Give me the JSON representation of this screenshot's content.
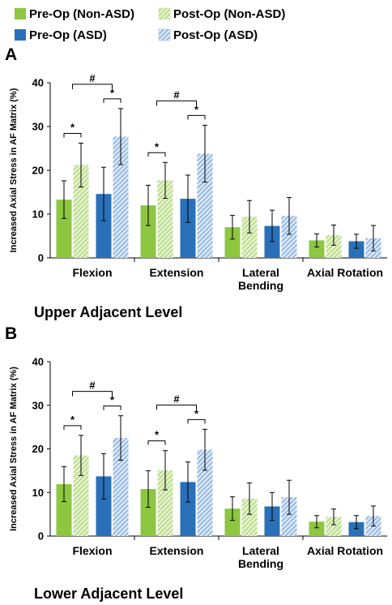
{
  "colors": {
    "pre_non_asd": "#8dc63f",
    "post_non_asd": "#c5e39a",
    "pre_asd": "#2a70b8",
    "post_asd": "#9cc0ea"
  },
  "legend": [
    {
      "label": "Pre-Op (Non-ASD)",
      "hatched": false,
      "color_key": "pre_non_asd"
    },
    {
      "label": "Post-Op (Non-ASD)",
      "hatched": true,
      "color_key": "post_non_asd"
    },
    {
      "label": "Pre-Op (ASD)",
      "hatched": false,
      "color_key": "pre_asd"
    },
    {
      "label": "Post-Op (ASD)",
      "hatched": true,
      "color_key": "post_asd"
    }
  ],
  "chart_data": [
    {
      "type": "bar",
      "panel": "A",
      "subtitle": "Upper Adjacent Level",
      "ylabel": "Increased Axial Stress in AF Matrix (%)",
      "ylim": [
        0,
        40
      ],
      "yticks": [
        0,
        10,
        20,
        30,
        40
      ],
      "categories": [
        "Flexion",
        "Extension",
        "Lateral\nBending",
        "Axial Rotation"
      ],
      "series": [
        {
          "name": "Pre-Op (Non-ASD)",
          "values": [
            13.3,
            12.0,
            7.0,
            4.0
          ],
          "errors": [
            4.3,
            4.6,
            2.7,
            1.5
          ]
        },
        {
          "name": "Post-Op (Non-ASD)",
          "values": [
            21.2,
            17.7,
            9.4,
            5.2
          ],
          "errors": [
            5.0,
            4.1,
            3.7,
            2.3
          ]
        },
        {
          "name": "Pre-Op (ASD)",
          "values": [
            14.6,
            13.5,
            7.3,
            3.8
          ],
          "errors": [
            6.1,
            5.4,
            3.6,
            1.6
          ]
        },
        {
          "name": "Post-Op (ASD)",
          "values": [
            27.7,
            23.8,
            9.6,
            4.5
          ],
          "errors": [
            6.4,
            6.5,
            4.2,
            2.9
          ]
        }
      ],
      "significance": {
        "star": "*",
        "hash": "#"
      }
    },
    {
      "type": "bar",
      "panel": "B",
      "subtitle": "Lower Adjacent Level",
      "ylabel": "Increased Axial Stress in AF Matrix (%)",
      "ylim": [
        0,
        40
      ],
      "yticks": [
        0,
        10,
        20,
        30,
        40
      ],
      "categories": [
        "Flexion",
        "Extension",
        "Lateral\nBending",
        "Axial Rotation"
      ],
      "series": [
        {
          "name": "Pre-Op (Non-ASD)",
          "values": [
            11.9,
            10.8,
            6.3,
            3.3
          ],
          "errors": [
            4.0,
            4.2,
            2.7,
            1.4
          ]
        },
        {
          "name": "Post-Op (Non-ASD)",
          "values": [
            18.5,
            15.1,
            8.6,
            4.4
          ],
          "errors": [
            4.6,
            4.5,
            3.6,
            1.8
          ]
        },
        {
          "name": "Pre-Op (ASD)",
          "values": [
            13.7,
            12.4,
            6.8,
            3.2
          ],
          "errors": [
            5.2,
            4.6,
            3.2,
            1.5
          ]
        },
        {
          "name": "Post-Op (ASD)",
          "values": [
            22.5,
            19.8,
            8.9,
            4.6
          ],
          "errors": [
            5.1,
            4.7,
            3.9,
            2.3
          ]
        }
      ],
      "significance": {
        "star": "*",
        "hash": "#"
      }
    }
  ]
}
